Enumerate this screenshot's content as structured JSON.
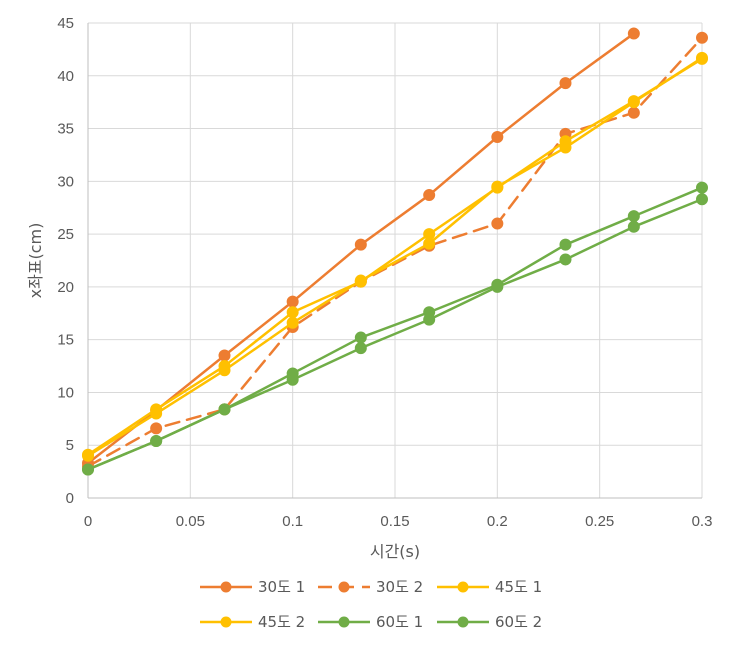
{
  "chart_data": {
    "type": "scatter",
    "title": "",
    "xlabel": "시간(s)",
    "ylabel": "x좌표(cm)",
    "xlim": [
      0,
      0.3
    ],
    "ylim": [
      0,
      45
    ],
    "xticks": [
      0,
      0.05,
      0.1,
      0.15,
      0.2,
      0.25,
      0.3
    ],
    "xtick_labels": [
      "0",
      "0.05",
      "0.1",
      "0.15",
      "0.2",
      "0.25",
      "0.3"
    ],
    "yticks": [
      0,
      5,
      10,
      15,
      20,
      25,
      30,
      35,
      40,
      45
    ],
    "ytick_labels": [
      "0",
      "5",
      "10",
      "15",
      "20",
      "25",
      "30",
      "35",
      "40",
      "45"
    ],
    "grid": true,
    "legend_position": "bottom",
    "series": [
      {
        "name": "30도 1",
        "color": "#ED7D31",
        "dashed": false,
        "x": [
          0,
          0.0333,
          0.0667,
          0.1,
          0.1333,
          0.1667,
          0.2,
          0.2333,
          0.2667
        ],
        "y": [
          3.3,
          8.3,
          13.5,
          18.6,
          24.0,
          28.7,
          34.2,
          39.3,
          44.0
        ]
      },
      {
        "name": "30도 2",
        "color": "#ED7D31",
        "dashed": true,
        "x": [
          0,
          0.0333,
          0.0667,
          0.1,
          0.1333,
          0.1667,
          0.2,
          0.2333,
          0.2667,
          0.3
        ],
        "y": [
          3.0,
          6.6,
          8.4,
          16.2,
          20.5,
          23.9,
          26.0,
          34.5,
          36.5,
          43.6
        ]
      },
      {
        "name": "45도 1",
        "color": "#FFC000",
        "dashed": false,
        "x": [
          0,
          0.0333,
          0.0667,
          0.1,
          0.1333,
          0.1667,
          0.2,
          0.2333,
          0.2667,
          0.3
        ],
        "y": [
          4.1,
          8.4,
          12.5,
          17.6,
          20.5,
          25.0,
          29.4,
          33.8,
          37.6,
          41.6
        ]
      },
      {
        "name": "45도 2",
        "color": "#FFC000",
        "dashed": false,
        "x": [
          0,
          0.0333,
          0.0667,
          0.1,
          0.1333,
          0.1667,
          0.2,
          0.2333,
          0.2667,
          0.3
        ],
        "y": [
          4.0,
          8.0,
          12.1,
          16.6,
          20.6,
          24.1,
          29.5,
          33.2,
          37.5,
          41.7
        ]
      },
      {
        "name": "60도 1",
        "color": "#70AD47",
        "dashed": false,
        "x": [
          0,
          0.0333,
          0.0667,
          0.1,
          0.1333,
          0.1667,
          0.2,
          0.2333,
          0.2667,
          0.3
        ],
        "y": [
          2.7,
          5.4,
          8.4,
          11.8,
          15.2,
          17.6,
          20.2,
          24.0,
          26.7,
          29.4
        ]
      },
      {
        "name": "60도 2",
        "color": "#70AD47",
        "dashed": false,
        "x": [
          0,
          0.0333,
          0.0667,
          0.1,
          0.1333,
          0.1667,
          0.2,
          0.2333,
          0.2667,
          0.3
        ],
        "y": [
          2.7,
          5.4,
          8.4,
          11.2,
          14.2,
          16.9,
          20.0,
          22.6,
          25.7,
          28.3
        ]
      }
    ]
  }
}
